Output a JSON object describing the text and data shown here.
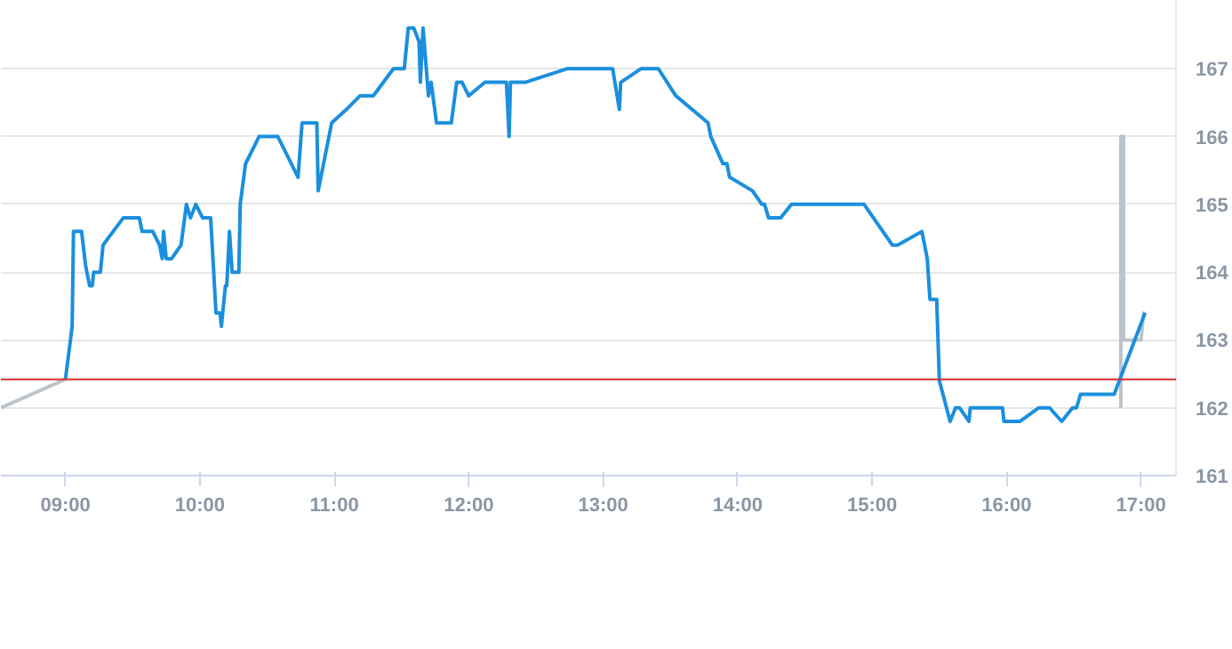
{
  "chart_data": {
    "type": "line",
    "xlim": [
      8.52,
      17.26
    ],
    "ylim": [
      161,
      168
    ],
    "xticks": [
      {
        "value": 9,
        "label": "09:00"
      },
      {
        "value": 10,
        "label": "10:00"
      },
      {
        "value": 11,
        "label": "11:00"
      },
      {
        "value": 12,
        "label": "12:00"
      },
      {
        "value": 13,
        "label": "13:00"
      },
      {
        "value": 14,
        "label": "14:00"
      },
      {
        "value": 15,
        "label": "15:00"
      },
      {
        "value": 16,
        "label": "16:00"
      },
      {
        "value": 17,
        "label": "17:00"
      }
    ],
    "yticks": [
      161,
      162,
      163,
      164,
      165,
      166,
      167
    ],
    "grid": "y",
    "ref_lines": [
      {
        "axis": "y",
        "value": 162.42,
        "color": "#d32f2f"
      }
    ],
    "series": [
      {
        "color": "#bbc4cb",
        "x": [
          8.52,
          9.0
        ],
        "values": [
          162.0,
          162.42
        ]
      },
      {
        "color": "#bbc4cb",
        "x": [
          16.85,
          16.85,
          16.87,
          16.87,
          17.0,
          17.02
        ],
        "values": [
          162.0,
          166.0,
          166.0,
          163.0,
          163.0,
          163.42
        ]
      },
      {
        "color": "#1a8fdd",
        "x": [
          9.0,
          9.05,
          9.06,
          9.12,
          9.15,
          9.18,
          9.2,
          9.21,
          9.26,
          9.28,
          9.43,
          9.55,
          9.57,
          9.65,
          9.7,
          9.72,
          9.73,
          9.75,
          9.79,
          9.86,
          9.9,
          9.93,
          9.97,
          10.02,
          10.08,
          10.12,
          10.15,
          10.16,
          10.19,
          10.2,
          10.22,
          10.24,
          10.29,
          10.3,
          10.34,
          10.39,
          10.44,
          10.58,
          10.73,
          10.76,
          10.87,
          10.88,
          10.98,
          11.09,
          11.19,
          11.29,
          11.44,
          11.52,
          11.55,
          11.59,
          11.63,
          11.64,
          11.66,
          11.7,
          11.72,
          11.76,
          11.87,
          11.91,
          11.95,
          12.0,
          12.12,
          12.28,
          12.3,
          12.31,
          12.42,
          12.73,
          13.07,
          13.12,
          13.13,
          13.28,
          13.41,
          13.54,
          13.78,
          13.8,
          13.89,
          13.92,
          13.94,
          14.11,
          14.18,
          14.2,
          14.23,
          14.32,
          14.4,
          14.7,
          14.94,
          15.15,
          15.19,
          15.37,
          15.41,
          15.43,
          15.48,
          15.5,
          15.58,
          15.62,
          15.65,
          15.72,
          15.73,
          15.97,
          15.98,
          16.1,
          16.24,
          16.32,
          16.41,
          16.49,
          16.52,
          16.55,
          16.8,
          17.03
        ],
        "values": [
          162.42,
          163.2,
          164.6,
          164.6,
          164.1,
          163.8,
          163.8,
          164.0,
          164.0,
          164.4,
          164.8,
          164.8,
          164.6,
          164.6,
          164.4,
          164.2,
          164.6,
          164.2,
          164.2,
          164.4,
          165.0,
          164.8,
          165.0,
          164.8,
          164.8,
          163.4,
          163.4,
          163.2,
          163.8,
          163.8,
          164.6,
          164.0,
          164.0,
          165.0,
          165.6,
          165.8,
          166.0,
          166.0,
          165.4,
          166.2,
          166.2,
          165.2,
          166.2,
          166.4,
          166.6,
          166.6,
          167.0,
          167.0,
          167.6,
          167.6,
          167.4,
          166.8,
          167.6,
          166.6,
          166.8,
          166.2,
          166.2,
          166.8,
          166.8,
          166.6,
          166.8,
          166.8,
          166.0,
          166.8,
          166.8,
          167.0,
          167.0,
          166.4,
          166.8,
          167.0,
          167.0,
          166.6,
          166.2,
          166.0,
          165.6,
          165.6,
          165.4,
          165.2,
          165.0,
          165.0,
          164.8,
          164.8,
          165.0,
          165.0,
          165.0,
          164.4,
          164.4,
          164.6,
          164.2,
          163.6,
          163.6,
          162.4,
          161.8,
          162.0,
          162.0,
          161.8,
          162.0,
          162.0,
          161.8,
          161.8,
          162.0,
          162.0,
          161.8,
          162.0,
          162.0,
          162.2,
          162.2,
          163.4
        ]
      }
    ]
  }
}
